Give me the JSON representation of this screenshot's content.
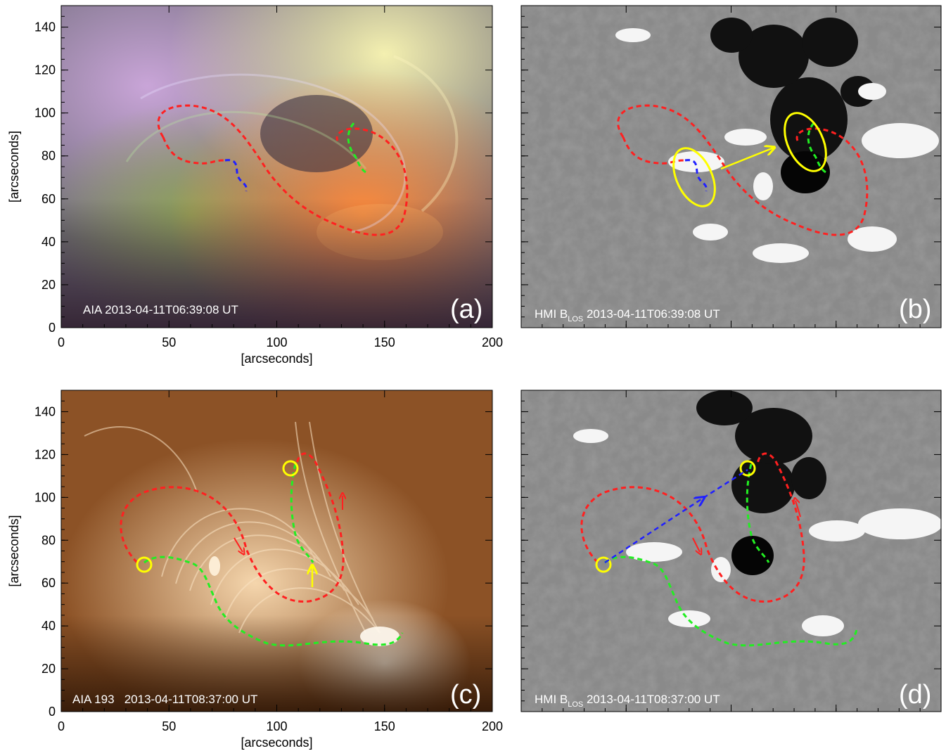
{
  "figure": {
    "panels": [
      {
        "id": "a",
        "letter": "(a)",
        "caption": "AIA 2013-04-11T06:39:08 UT",
        "type": "multi-channel EUV composite"
      },
      {
        "id": "b",
        "letter": "(b)",
        "caption_prefix": "HMI B",
        "caption_sub": "LOS",
        "caption_suffix": " 2013-04-11T06:39:08 UT",
        "type": "line-of-sight magnetogram"
      },
      {
        "id": "c",
        "letter": "(c)",
        "caption": "AIA 193   2013-04-11T08:37:00 UT",
        "type": "EUV 193 image"
      },
      {
        "id": "d",
        "letter": "(d)",
        "caption_prefix": "HMI B",
        "caption_sub": "LOS",
        "caption_suffix": " 2013-04-11T08:37:00 UT",
        "type": "line-of-sight magnetogram"
      }
    ],
    "axes": {
      "xlabel": "[arcseconds]",
      "ylabel": "[arcseconds]",
      "xticks": [
        "0",
        "50",
        "100",
        "150",
        "200"
      ],
      "yticks": [
        "0",
        "20",
        "40",
        "60",
        "80",
        "100",
        "120",
        "140"
      ],
      "xlim": [
        0,
        200
      ],
      "ylim": [
        0,
        150
      ]
    },
    "colors": {
      "red_contour": "#ff2020",
      "green_contour": "#22ee22",
      "blue_contour": "#2020ff",
      "yellow_marker": "#ffff00"
    }
  }
}
